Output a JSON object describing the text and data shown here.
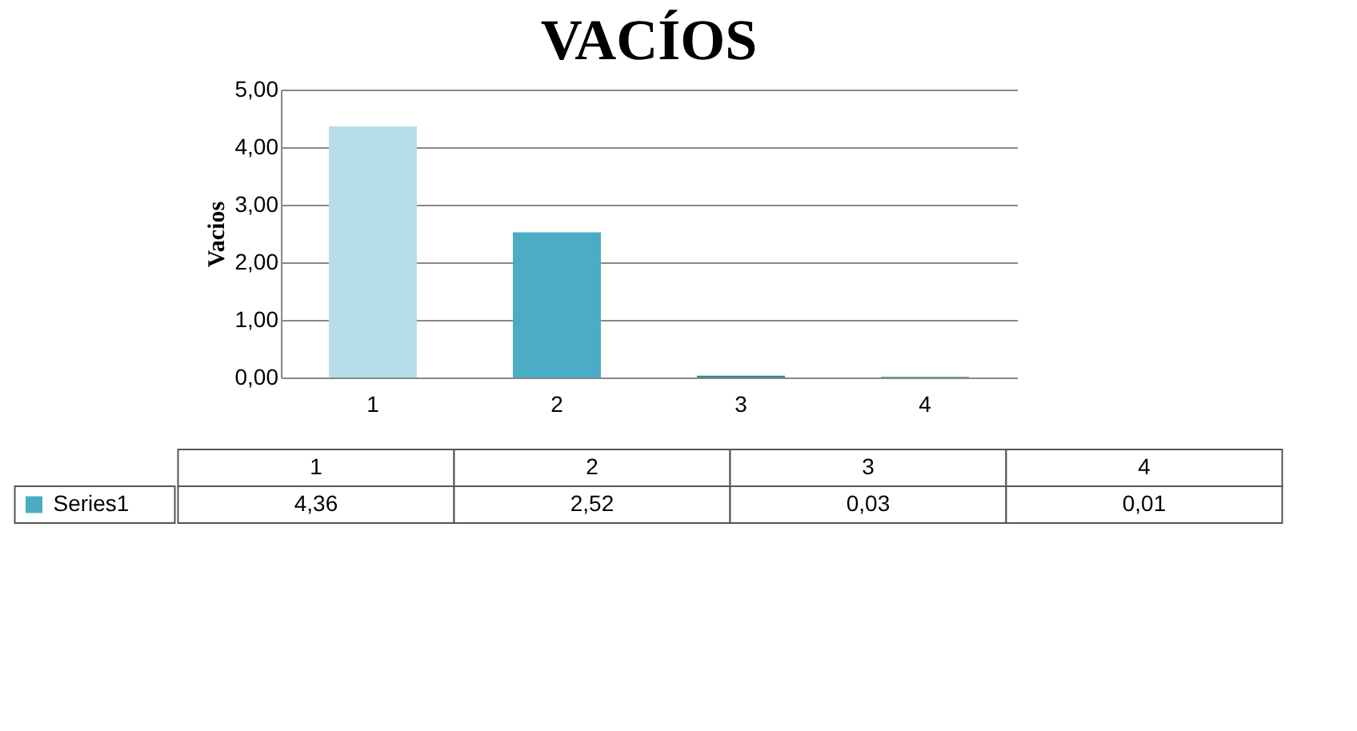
{
  "chart_data": {
    "type": "bar",
    "title": "VACÍOS",
    "ylabel": "Vacios",
    "categories": [
      "1",
      "2",
      "3",
      "4"
    ],
    "series": [
      {
        "name": "Series1",
        "values": [
          4.36,
          2.52,
          0.03,
          0.01
        ],
        "colors": [
          "#b7dee8",
          "#4bacc6",
          "#31859c",
          "#31859c"
        ]
      }
    ],
    "value_labels": [
      "4,36",
      "2,52",
      "0,03",
      "0,01"
    ],
    "ylim": [
      0,
      5
    ],
    "yticks": [
      {
        "value": 0,
        "label": "0,00"
      },
      {
        "value": 1,
        "label": "1,00"
      },
      {
        "value": 2,
        "label": "2,00"
      },
      {
        "value": 3,
        "label": "3,00"
      },
      {
        "value": 4,
        "label": "4,00"
      },
      {
        "value": 5,
        "label": "5,00"
      }
    ],
    "grid": "y",
    "legend": "bottom"
  }
}
